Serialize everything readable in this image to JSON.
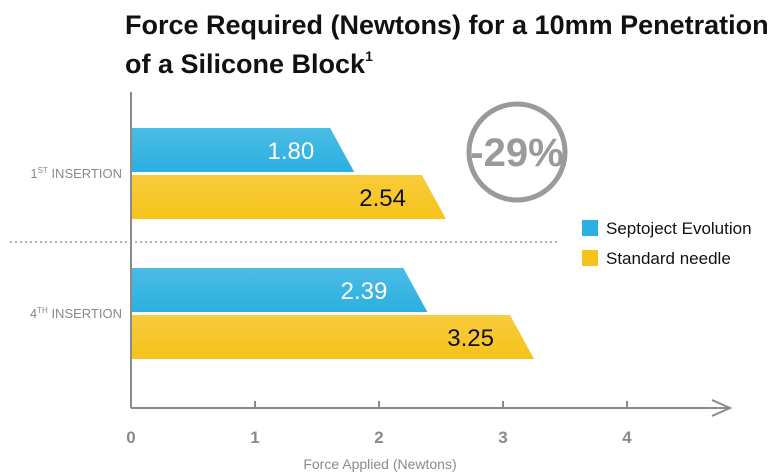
{
  "title": {
    "line1": "Force Required (Newtons) for a 10mm Penetration",
    "line2": "of a Silicone Block",
    "footnote": "1"
  },
  "callout": {
    "text": "-29%"
  },
  "colors": {
    "series1": "#2bb0e0",
    "series2": "#f6c31a",
    "axis": "#8a8a8a",
    "callout": "#9a9a9a"
  },
  "chart_data": {
    "type": "bar",
    "orientation": "horizontal",
    "title": "Force Required (Newtons) for a 10mm Penetration of a Silicone Block",
    "xlabel": "Force Applied (Newtons)",
    "ylabel": "",
    "xlim": [
      0,
      4
    ],
    "xticks": [
      "0",
      "1",
      "2",
      "3",
      "4"
    ],
    "categories": [
      {
        "ordinal": "1",
        "suffix": "ST",
        "label": "INSERTION"
      },
      {
        "ordinal": "4",
        "suffix": "TH",
        "label": "INSERTION"
      }
    ],
    "series": [
      {
        "name": "Septoject Evolution",
        "values": [
          1.8,
          2.39
        ],
        "labels": [
          "1.80",
          "2.39"
        ]
      },
      {
        "name": "Standard needle",
        "values": [
          2.54,
          3.25
        ],
        "labels": [
          "2.54",
          "3.25"
        ]
      }
    ],
    "legend_position": "right",
    "grid": false
  }
}
